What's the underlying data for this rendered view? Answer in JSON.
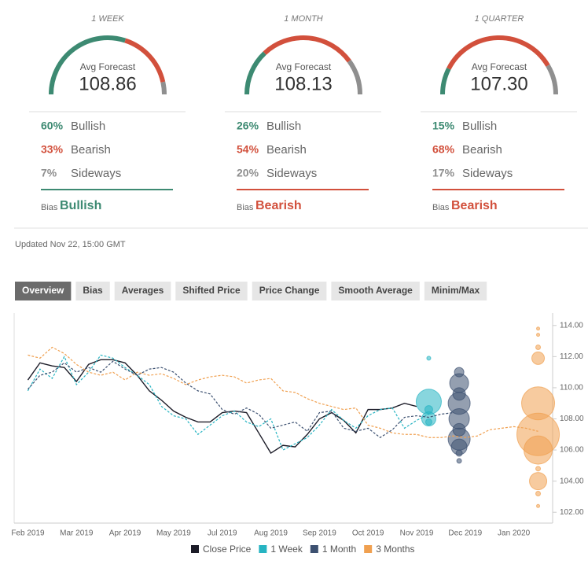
{
  "forecasts": [
    {
      "period": "1 WEEK",
      "avg_label": "Avg Forecast",
      "avg": "108.86",
      "sentiments": [
        {
          "value": 60,
          "label": "60%",
          "name": "Bullish",
          "color": "#3d8a72"
        },
        {
          "value": 33,
          "label": "33%",
          "name": "Bearish",
          "color": "#d2503c"
        },
        {
          "value": 7,
          "label": "7%",
          "name": "Sideways",
          "color": "#8f8f8f"
        }
      ],
      "bias_label": "Bias",
      "bias": "Bullish",
      "bias_color": "#3d8a72"
    },
    {
      "period": "1 MONTH",
      "avg_label": "Avg Forecast",
      "avg": "108.13",
      "sentiments": [
        {
          "value": 26,
          "label": "26%",
          "name": "Bullish",
          "color": "#3d8a72"
        },
        {
          "value": 54,
          "label": "54%",
          "name": "Bearish",
          "color": "#d2503c"
        },
        {
          "value": 20,
          "label": "20%",
          "name": "Sideways",
          "color": "#8f8f8f"
        }
      ],
      "bias_label": "Bias",
      "bias": "Bearish",
      "bias_color": "#d2503c"
    },
    {
      "period": "1 QUARTER",
      "avg_label": "Avg Forecast",
      "avg": "107.30",
      "sentiments": [
        {
          "value": 15,
          "label": "15%",
          "name": "Bullish",
          "color": "#3d8a72"
        },
        {
          "value": 68,
          "label": "68%",
          "name": "Bearish",
          "color": "#d2503c"
        },
        {
          "value": 17,
          "label": "17%",
          "name": "Sideways",
          "color": "#8f8f8f"
        }
      ],
      "bias_label": "Bias",
      "bias": "Bearish",
      "bias_color": "#d2503c"
    }
  ],
  "updated": "Updated Nov 22, 15:00 GMT",
  "tabs": [
    "Overview",
    "Bias",
    "Averages",
    "Shifted Price",
    "Price Change",
    "Smooth Average",
    "Minim/Max"
  ],
  "chart_data": {
    "type": "line",
    "categories": [
      null,
      "Feb 2019",
      null,
      null,
      null,
      "Mar 2019",
      null,
      null,
      null,
      "Apr 2019",
      null,
      null,
      null,
      "May 2019",
      null,
      null,
      null,
      "Jul 2019",
      null,
      null,
      null,
      "Aug 2019",
      null,
      null,
      null,
      "Sep 2019",
      null,
      null,
      null,
      "Oct 2019",
      null,
      null,
      null,
      "Nov 2019",
      null,
      null,
      null,
      "Dec 2019",
      null,
      null,
      null,
      "Jan 2020",
      null,
      null,
      null
    ],
    "ylim": [
      101,
      115
    ],
    "yticks": [
      {
        "value": 102,
        "label": "102.00"
      },
      {
        "value": 104,
        "label": "104.00"
      },
      {
        "value": 106,
        "label": "106.00"
      },
      {
        "value": 108,
        "label": "108.00"
      },
      {
        "value": 110,
        "label": "110.00"
      },
      {
        "value": 112,
        "label": "112.00"
      },
      {
        "value": 114,
        "label": "114.00"
      }
    ],
    "series": [
      {
        "name": "Close Price",
        "color": "#1c1c28",
        "dash": false,
        "values": [
          null,
          110.5,
          111.6,
          111.4,
          111.3,
          110.4,
          111.5,
          111.8,
          111.8,
          111.6,
          110.8,
          109.8,
          109.2,
          108.5,
          108.1,
          107.8,
          107.8,
          108.4,
          108.5,
          108.4,
          107.1,
          105.8,
          106.3,
          106.2,
          107.0,
          108.0,
          108.4,
          107.9,
          107.1,
          108.6,
          108.6,
          108.7,
          109.0,
          108.8,
          null,
          null,
          null,
          null,
          null,
          null,
          null,
          null,
          null,
          null,
          null
        ]
      },
      {
        "name": "1 Week",
        "color": "#26b4c2",
        "dash": true,
        "values": [
          null,
          109.8,
          111.2,
          110.6,
          112.0,
          110.2,
          111.0,
          112.1,
          111.9,
          111.3,
          110.8,
          110.2,
          108.8,
          108.2,
          108.0,
          107.0,
          107.6,
          108.2,
          108.5,
          107.8,
          107.5,
          108.0,
          106.0,
          106.4,
          106.8,
          107.6,
          108.6,
          107.9,
          107.4,
          108.2,
          108.6,
          108.7,
          107.4,
          107.9,
          108.3,
          null,
          null,
          null,
          null,
          null,
          null,
          null,
          null,
          null,
          null
        ],
        "forecast_values": [
          111.9,
          109.1,
          108.6,
          108.0,
          107.8
        ],
        "forecast_sizes": [
          2.5,
          16,
          5,
          9,
          4
        ]
      },
      {
        "name": "1 Month",
        "color": "#3c5070",
        "dash": true,
        "values": [
          null,
          109.9,
          110.8,
          111.0,
          111.6,
          111.0,
          111.3,
          111.0,
          111.7,
          111.2,
          110.8,
          111.2,
          111.3,
          111.0,
          110.3,
          109.8,
          109.6,
          108.6,
          108.3,
          108.7,
          108.3,
          107.4,
          107.6,
          107.8,
          107.2,
          108.4,
          108.5,
          107.4,
          107.2,
          107.4,
          106.8,
          107.3,
          108.1,
          108.2,
          108.1,
          108.3,
          108.4,
          null,
          null,
          null,
          null,
          null,
          null,
          null,
          null
        ],
        "forecast_values": [
          111.0,
          110.3,
          109.6,
          109.0,
          108.0,
          107.3,
          106.7,
          106.2,
          105.8,
          105.3
        ],
        "forecast_sizes": [
          6,
          12,
          8,
          14,
          13,
          8,
          14,
          10,
          4,
          3
        ]
      },
      {
        "name": "3 Months",
        "color": "#f0a050",
        "dash": true,
        "values": [
          null,
          112.1,
          111.9,
          112.6,
          112.2,
          111.5,
          111.0,
          110.8,
          111.0,
          110.5,
          111.0,
          110.8,
          110.9,
          110.6,
          110.2,
          110.5,
          110.7,
          110.8,
          110.7,
          110.3,
          110.5,
          110.6,
          109.8,
          109.7,
          109.3,
          109.0,
          108.8,
          108.6,
          108.7,
          107.6,
          107.4,
          107.1,
          107.0,
          107.0,
          106.8,
          106.8,
          106.9,
          106.8,
          106.9,
          107.3,
          107.4,
          107.5,
          107.4,
          107.2,
          null
        ],
        "forecast_values": [
          113.8,
          113.4,
          112.6,
          111.9,
          109.0,
          107.0,
          106.0,
          104.8,
          104.0,
          103.2,
          102.4
        ],
        "forecast_sizes": [
          2,
          2,
          3,
          8,
          21,
          27,
          18,
          3,
          11,
          3,
          2
        ]
      }
    ]
  }
}
